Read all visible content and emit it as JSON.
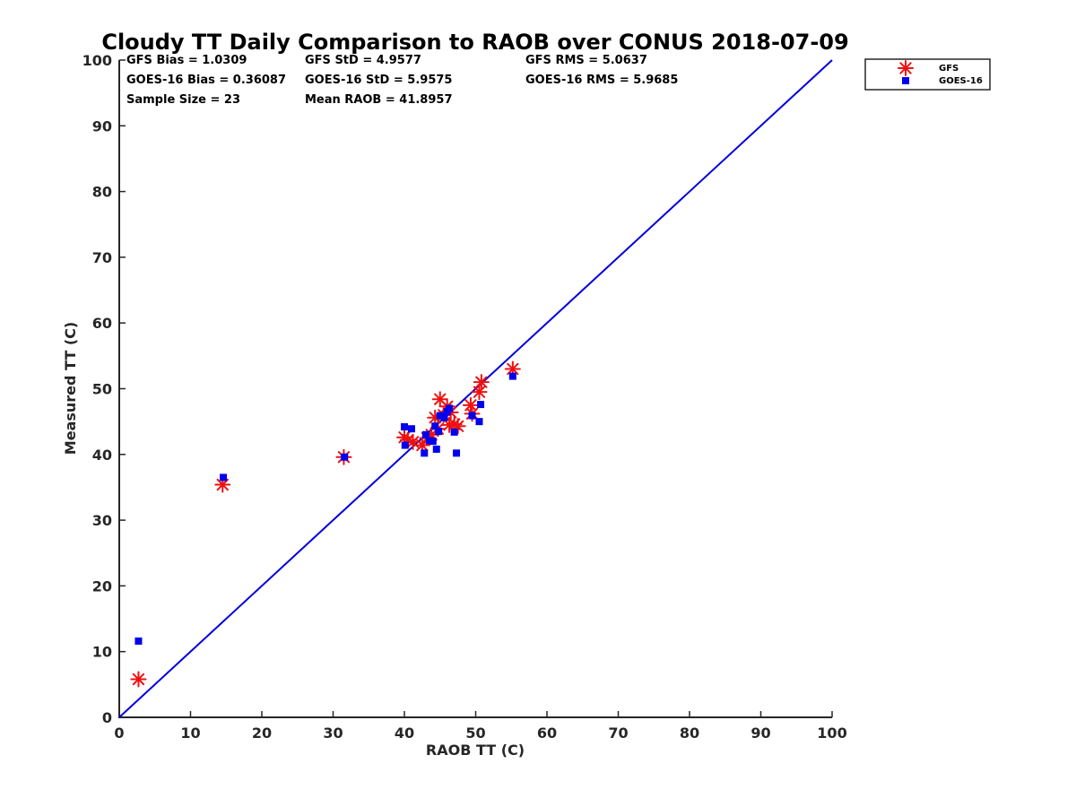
{
  "chart_data": {
    "type": "scatter",
    "title": "Cloudy TT Daily Comparison to RAOB over CONUS 2018-07-09",
    "xlabel": "RAOB TT (C)",
    "ylabel": "Measured TT (C)",
    "xlim": [
      0,
      100
    ],
    "ylim": [
      0,
      100
    ],
    "xticks": [
      "0",
      "10",
      "20",
      "30",
      "40",
      "50",
      "60",
      "70",
      "80",
      "90",
      "100"
    ],
    "yticks": [
      "0",
      "10",
      "20",
      "30",
      "40",
      "50",
      "60",
      "70",
      "80",
      "90",
      "100"
    ],
    "grid": false,
    "legend_position": "outside-top-right",
    "stats": [
      [
        "GFS Bias = 1.0309",
        "GFS StD = 4.9577",
        "GFS RMS = 5.0637"
      ],
      [
        "GOES-16 Bias = 0.36087",
        "GOES-16 StD = 5.9575",
        "GOES-16 RMS = 5.9685"
      ],
      [
        "Sample Size = 23",
        "Mean RAOB = 41.8957",
        ""
      ]
    ],
    "reference_line": {
      "x": [
        0,
        100
      ],
      "y": [
        0,
        100
      ],
      "color": "#0000dd"
    },
    "series": [
      {
        "name": "GFS",
        "marker": "asterisk",
        "color": "#ee1111",
        "points": [
          [
            2.7,
            5.8
          ],
          [
            14.5,
            35.4
          ],
          [
            31.5,
            39.6
          ],
          [
            40.0,
            42.6
          ],
          [
            40.5,
            42.2
          ],
          [
            41.2,
            41.9
          ],
          [
            42.5,
            41.4
          ],
          [
            43.2,
            42.5
          ],
          [
            43.8,
            43.0
          ],
          [
            44.3,
            45.6
          ],
          [
            44.7,
            43.9
          ],
          [
            45.0,
            48.4
          ],
          [
            45.5,
            46.0
          ],
          [
            46.0,
            47.3
          ],
          [
            46.3,
            44.5
          ],
          [
            47.0,
            44.6
          ],
          [
            47.5,
            44.3
          ],
          [
            49.3,
            47.5
          ],
          [
            49.5,
            46.2
          ],
          [
            50.5,
            49.5
          ],
          [
            50.8,
            51.0
          ],
          [
            55.2,
            53.0
          ],
          [
            46.5,
            46.4
          ]
        ]
      },
      {
        "name": "GOES-16",
        "marker": "square",
        "color": "#0000ee",
        "points": [
          [
            2.7,
            11.6
          ],
          [
            14.6,
            36.5
          ],
          [
            31.6,
            39.6
          ],
          [
            40.0,
            44.2
          ],
          [
            40.1,
            41.4
          ],
          [
            41.0,
            43.9
          ],
          [
            42.8,
            40.2
          ],
          [
            43.0,
            43.0
          ],
          [
            43.5,
            42.1
          ],
          [
            44.0,
            42.0
          ],
          [
            44.3,
            44.3
          ],
          [
            44.5,
            40.8
          ],
          [
            44.8,
            43.5
          ],
          [
            45.0,
            45.9
          ],
          [
            45.6,
            45.6
          ],
          [
            46.0,
            46.5
          ],
          [
            46.3,
            47.0
          ],
          [
            47.0,
            43.4
          ],
          [
            47.3,
            40.2
          ],
          [
            49.5,
            45.9
          ],
          [
            50.5,
            45.0
          ],
          [
            50.7,
            47.6
          ],
          [
            55.2,
            51.9
          ]
        ]
      }
    ]
  }
}
